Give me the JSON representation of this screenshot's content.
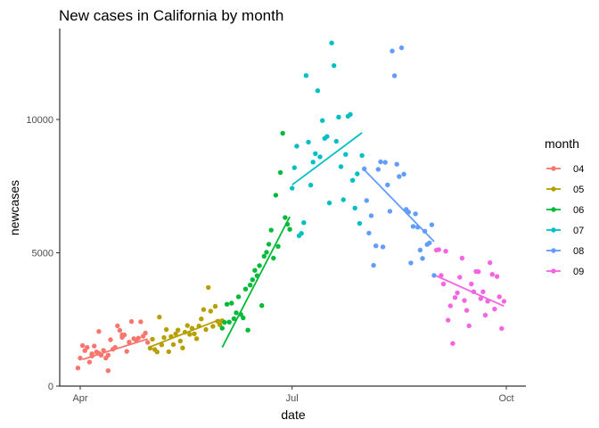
{
  "chart_data": {
    "type": "scatter",
    "title": "New cases in California by month",
    "xlabel": "date",
    "ylabel": "newcases",
    "x_ticks": [
      {
        "label": "Apr",
        "day": 0
      },
      {
        "label": "Jul",
        "day": 91
      },
      {
        "label": "Oct",
        "day": 183
      }
    ],
    "xlim": [
      "2020-03-28",
      "2020-10-08"
    ],
    "y_ticks": [
      0,
      5000,
      10000
    ],
    "ylim": [
      0,
      13300
    ],
    "grid": false,
    "legend": {
      "title": "month",
      "position": "right"
    },
    "series": [
      {
        "name": "04",
        "color": "#F8766D",
        "trend": [
          [
            1,
            1000
          ],
          [
            29,
            1770
          ]
        ],
        "points": [
          [
            -1,
            680
          ],
          [
            0,
            1050
          ],
          [
            1,
            1520
          ],
          [
            2,
            1330
          ],
          [
            3,
            1450
          ],
          [
            4,
            900
          ],
          [
            5,
            1130
          ],
          [
            6,
            1500
          ],
          [
            7,
            1280
          ],
          [
            8,
            1230
          ],
          [
            9,
            1160
          ],
          [
            10,
            1340
          ],
          [
            11,
            1050
          ],
          [
            12,
            1160
          ],
          [
            13,
            1740
          ],
          [
            14,
            1380
          ],
          [
            15,
            1450
          ],
          [
            16,
            2260
          ],
          [
            17,
            2090
          ],
          [
            18,
            1920
          ],
          [
            19,
            1920
          ],
          [
            20,
            1300
          ],
          [
            21,
            1650
          ],
          [
            22,
            2420
          ],
          [
            23,
            1780
          ],
          [
            24,
            1720
          ],
          [
            25,
            1800
          ],
          [
            26,
            2410
          ],
          [
            27,
            1870
          ],
          [
            28,
            1990
          ],
          [
            29,
            1640
          ],
          [
            12,
            580
          ],
          [
            18,
            1830
          ],
          [
            8,
            2050
          ],
          [
            5,
            1210
          ]
        ]
      },
      {
        "name": "05",
        "color": "#B79F00",
        "trend": [
          [
            30,
            1470
          ],
          [
            60,
            2500
          ]
        ],
        "points": [
          [
            30,
            1420
          ],
          [
            31,
            1760
          ],
          [
            32,
            1370
          ],
          [
            33,
            1280
          ],
          [
            34,
            2590
          ],
          [
            35,
            1550
          ],
          [
            36,
            1820
          ],
          [
            37,
            2120
          ],
          [
            38,
            1290
          ],
          [
            39,
            1860
          ],
          [
            40,
            1560
          ],
          [
            41,
            1960
          ],
          [
            42,
            2100
          ],
          [
            43,
            1690
          ],
          [
            44,
            1430
          ],
          [
            45,
            2020
          ],
          [
            46,
            2270
          ],
          [
            47,
            1940
          ],
          [
            48,
            2170
          ],
          [
            49,
            1960
          ],
          [
            50,
            1780
          ],
          [
            51,
            2250
          ],
          [
            52,
            2520
          ],
          [
            53,
            2870
          ],
          [
            54,
            2120
          ],
          [
            55,
            3700
          ],
          [
            56,
            2810
          ],
          [
            57,
            2240
          ],
          [
            58,
            2990
          ],
          [
            59,
            2430
          ],
          [
            60,
            2300
          ],
          [
            61,
            2450
          ]
        ]
      },
      {
        "name": "06",
        "color": "#00BA38",
        "trend": [
          [
            61,
            1450
          ],
          [
            90,
            6350
          ]
        ],
        "points": [
          [
            61,
            2170
          ],
          [
            62,
            2390
          ],
          [
            63,
            3070
          ],
          [
            64,
            2400
          ],
          [
            65,
            3110
          ],
          [
            66,
            2530
          ],
          [
            67,
            2750
          ],
          [
            68,
            3350
          ],
          [
            69,
            2690
          ],
          [
            70,
            2560
          ],
          [
            71,
            3640
          ],
          [
            72,
            2100
          ],
          [
            73,
            3790
          ],
          [
            74,
            3990
          ],
          [
            75,
            4340
          ],
          [
            76,
            4140
          ],
          [
            77,
            4520
          ],
          [
            78,
            3020
          ],
          [
            79,
            4870
          ],
          [
            80,
            5020
          ],
          [
            81,
            5320
          ],
          [
            82,
            5850
          ],
          [
            83,
            4800
          ],
          [
            84,
            7160
          ],
          [
            85,
            5240
          ],
          [
            86,
            8010
          ],
          [
            87,
            9480
          ],
          [
            88,
            6320
          ],
          [
            89,
            6070
          ],
          [
            90,
            5880
          ]
        ]
      },
      {
        "name": "07",
        "color": "#00BFC4",
        "trend": [
          [
            91,
            7550
          ],
          [
            121,
            9500
          ]
        ],
        "points": [
          [
            91,
            7420
          ],
          [
            92,
            8190
          ],
          [
            93,
            9000
          ],
          [
            94,
            5640
          ],
          [
            95,
            5730
          ],
          [
            96,
            6130
          ],
          [
            97,
            11650
          ],
          [
            98,
            9150
          ],
          [
            99,
            7540
          ],
          [
            100,
            8400
          ],
          [
            101,
            8720
          ],
          [
            102,
            11080
          ],
          [
            103,
            8600
          ],
          [
            104,
            9960
          ],
          [
            105,
            9290
          ],
          [
            106,
            9360
          ],
          [
            107,
            6870
          ],
          [
            108,
            12870
          ],
          [
            109,
            12020
          ],
          [
            110,
            9180
          ],
          [
            111,
            10090
          ],
          [
            112,
            8230
          ],
          [
            113,
            6990
          ],
          [
            114,
            8690
          ],
          [
            115,
            10120
          ],
          [
            116,
            10190
          ],
          [
            117,
            7720
          ],
          [
            118,
            6680
          ],
          [
            119,
            7960
          ],
          [
            120,
            6100
          ],
          [
            121,
            8650
          ]
        ]
      },
      {
        "name": "08",
        "color": "#619CFF",
        "trend": [
          [
            122,
            8110
          ],
          [
            152,
            5420
          ]
        ],
        "points": [
          [
            122,
            8150
          ],
          [
            123,
            6960
          ],
          [
            124,
            5740
          ],
          [
            125,
            6390
          ],
          [
            126,
            4530
          ],
          [
            127,
            5260
          ],
          [
            128,
            8130
          ],
          [
            129,
            8410
          ],
          [
            130,
            5220
          ],
          [
            131,
            8390
          ],
          [
            132,
            7550
          ],
          [
            133,
            6560
          ],
          [
            134,
            12570
          ],
          [
            135,
            11640
          ],
          [
            136,
            8320
          ],
          [
            137,
            7860
          ],
          [
            138,
            12690
          ],
          [
            139,
            7950
          ],
          [
            140,
            6630
          ],
          [
            141,
            6530
          ],
          [
            142,
            4620
          ],
          [
            143,
            5990
          ],
          [
            144,
            6460
          ],
          [
            145,
            5960
          ],
          [
            146,
            5100
          ],
          [
            147,
            4790
          ],
          [
            148,
            5810
          ],
          [
            149,
            5310
          ],
          [
            150,
            5370
          ],
          [
            151,
            6050
          ],
          [
            152,
            4150
          ]
        ]
      },
      {
        "name": "09",
        "color": "#F564E3",
        "trend": [
          [
            153,
            4130
          ],
          [
            182,
            3000
          ]
        ],
        "points": [
          [
            153,
            5100
          ],
          [
            154,
            5120
          ],
          [
            155,
            4150
          ],
          [
            156,
            3830
          ],
          [
            157,
            5060
          ],
          [
            158,
            2470
          ],
          [
            159,
            3010
          ],
          [
            160,
            1600
          ],
          [
            161,
            3320
          ],
          [
            162,
            3500
          ],
          [
            163,
            4080
          ],
          [
            164,
            4800
          ],
          [
            165,
            3210
          ],
          [
            166,
            2840
          ],
          [
            167,
            2260
          ],
          [
            168,
            3830
          ],
          [
            169,
            3540
          ],
          [
            170,
            4300
          ],
          [
            171,
            4290
          ],
          [
            172,
            3280
          ],
          [
            173,
            3540
          ],
          [
            174,
            2660
          ],
          [
            175,
            3180
          ],
          [
            176,
            4630
          ],
          [
            177,
            4190
          ],
          [
            178,
            2890
          ],
          [
            179,
            4110
          ],
          [
            180,
            3350
          ],
          [
            181,
            2160
          ],
          [
            182,
            3180
          ]
        ]
      }
    ]
  }
}
